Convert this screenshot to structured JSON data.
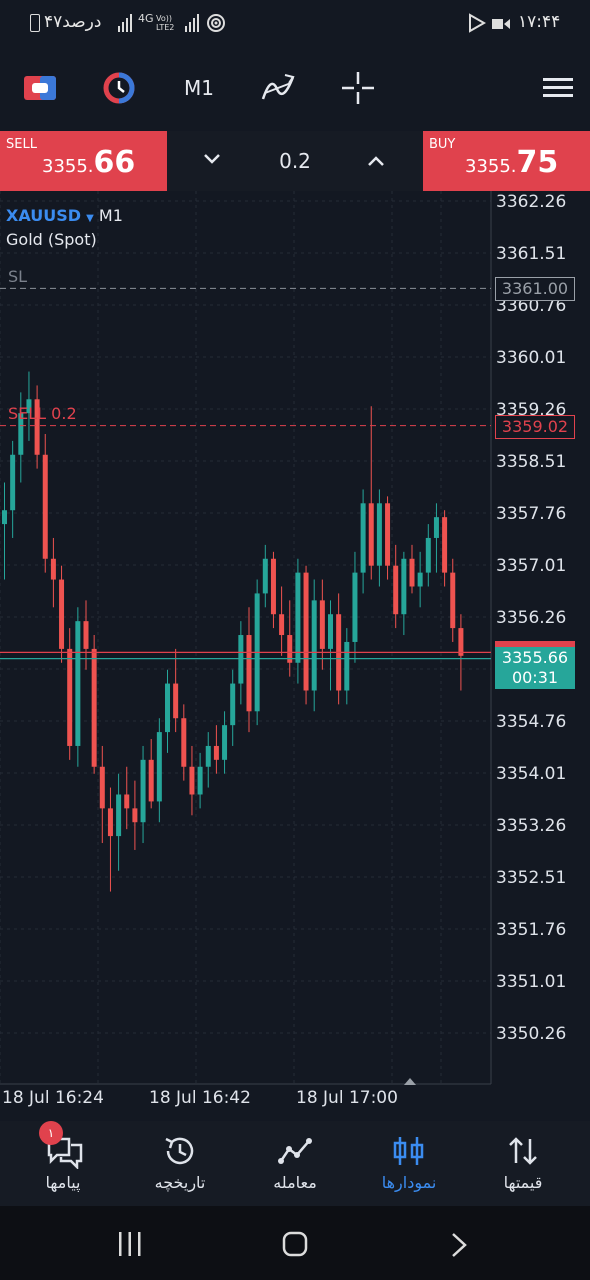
{
  "status_bar": {
    "time": "۱۷:۴۴",
    "battery": "۴۷درصد",
    "network": "4G",
    "network_sub": "Vo)) LTE2"
  },
  "toolbar": {
    "timeframe": "M1",
    "icons": [
      "trade-icon",
      "chart-type-icon",
      "indicators-icon",
      "crosshair-icon",
      "menu-icon"
    ]
  },
  "trade": {
    "sell_label": "SELL",
    "sell_price_main": "3355.",
    "sell_price_big": "66",
    "buy_label": "BUY",
    "buy_price_main": "3355.",
    "buy_price_big": "75",
    "volume": "0.2"
  },
  "chart_info": {
    "symbol": "XAUUSD",
    "timeframe": "M1",
    "description": "Gold (Spot)",
    "sl_label": "SL",
    "sl_price": "3361.00",
    "sell_order_label": "SELL 0.2",
    "sell_order_price": "3359.02",
    "current_price": "3355.66",
    "countdown": "00:31",
    "ask_price_hidden": "3355.75"
  },
  "chart_data": {
    "type": "candlestick",
    "symbol": "XAUUSD",
    "timeframe": "M1",
    "y_ticks": [
      "3362.26",
      "3361.51",
      "3360.76",
      "3360.01",
      "3359.26",
      "3358.51",
      "3357.76",
      "3357.01",
      "3356.26",
      "3355.51",
      "3354.76",
      "3354.01",
      "3353.26",
      "3352.51",
      "3351.76",
      "3351.01",
      "3350.26"
    ],
    "x_ticks": [
      "18 Jul 16:24",
      "18 Jul 16:42",
      "18 Jul 17:00"
    ],
    "ylim": [
      3349.9,
      3362.6
    ],
    "grid": true,
    "candles": [
      {
        "o": 3357.6,
        "h": 3358.2,
        "l": 3356.8,
        "c": 3357.8
      },
      {
        "o": 3357.8,
        "h": 3358.8,
        "l": 3357.4,
        "c": 3358.6
      },
      {
        "o": 3358.6,
        "h": 3359.5,
        "l": 3358.2,
        "c": 3359.2
      },
      {
        "o": 3359.2,
        "h": 3359.8,
        "l": 3358.8,
        "c": 3359.4
      },
      {
        "o": 3359.4,
        "h": 3359.6,
        "l": 3358.4,
        "c": 3358.6
      },
      {
        "o": 3358.6,
        "h": 3358.9,
        "l": 3356.9,
        "c": 3357.1
      },
      {
        "o": 3357.1,
        "h": 3357.4,
        "l": 3356.4,
        "c": 3356.8
      },
      {
        "o": 3356.8,
        "h": 3357.0,
        "l": 3355.6,
        "c": 3355.8
      },
      {
        "o": 3355.8,
        "h": 3356.1,
        "l": 3354.2,
        "c": 3354.4
      },
      {
        "o": 3354.4,
        "h": 3356.4,
        "l": 3354.1,
        "c": 3356.2
      },
      {
        "o": 3356.2,
        "h": 3356.5,
        "l": 3355.5,
        "c": 3355.8
      },
      {
        "o": 3355.8,
        "h": 3356.0,
        "l": 3354.0,
        "c": 3354.1
      },
      {
        "o": 3354.1,
        "h": 3354.4,
        "l": 3353.0,
        "c": 3353.5
      },
      {
        "o": 3353.5,
        "h": 3353.8,
        "l": 3352.3,
        "c": 3353.1
      },
      {
        "o": 3353.1,
        "h": 3354.0,
        "l": 3352.6,
        "c": 3353.7
      },
      {
        "o": 3353.7,
        "h": 3354.1,
        "l": 3353.2,
        "c": 3353.5
      },
      {
        "o": 3353.5,
        "h": 3353.9,
        "l": 3352.9,
        "c": 3353.3
      },
      {
        "o": 3353.3,
        "h": 3354.4,
        "l": 3353.0,
        "c": 3354.2
      },
      {
        "o": 3354.2,
        "h": 3354.5,
        "l": 3353.5,
        "c": 3353.6
      },
      {
        "o": 3353.6,
        "h": 3354.8,
        "l": 3353.3,
        "c": 3354.6
      },
      {
        "o": 3354.6,
        "h": 3355.5,
        "l": 3354.3,
        "c": 3355.3
      },
      {
        "o": 3355.3,
        "h": 3355.8,
        "l": 3354.6,
        "c": 3354.8
      },
      {
        "o": 3354.8,
        "h": 3355.0,
        "l": 3353.9,
        "c": 3354.1
      },
      {
        "o": 3354.1,
        "h": 3354.4,
        "l": 3353.4,
        "c": 3353.7
      },
      {
        "o": 3353.7,
        "h": 3354.3,
        "l": 3353.5,
        "c": 3354.1
      },
      {
        "o": 3354.1,
        "h": 3354.6,
        "l": 3353.8,
        "c": 3354.4
      },
      {
        "o": 3354.4,
        "h": 3354.7,
        "l": 3354.0,
        "c": 3354.2
      },
      {
        "o": 3354.2,
        "h": 3354.9,
        "l": 3354.0,
        "c": 3354.7
      },
      {
        "o": 3354.7,
        "h": 3355.5,
        "l": 3354.4,
        "c": 3355.3
      },
      {
        "o": 3355.3,
        "h": 3356.2,
        "l": 3355.0,
        "c": 3356.0
      },
      {
        "o": 3356.0,
        "h": 3356.4,
        "l": 3354.6,
        "c": 3354.9
      },
      {
        "o": 3354.9,
        "h": 3356.8,
        "l": 3354.7,
        "c": 3356.6
      },
      {
        "o": 3356.6,
        "h": 3357.3,
        "l": 3356.4,
        "c": 3357.1
      },
      {
        "o": 3357.1,
        "h": 3357.2,
        "l": 3356.1,
        "c": 3356.3
      },
      {
        "o": 3356.3,
        "h": 3356.7,
        "l": 3355.7,
        "c": 3356.0
      },
      {
        "o": 3356.0,
        "h": 3356.5,
        "l": 3355.4,
        "c": 3355.6
      },
      {
        "o": 3355.6,
        "h": 3357.1,
        "l": 3355.3,
        "c": 3356.9
      },
      {
        "o": 3356.9,
        "h": 3357.0,
        "l": 3355.0,
        "c": 3355.2
      },
      {
        "o": 3355.2,
        "h": 3356.8,
        "l": 3354.9,
        "c": 3356.5
      },
      {
        "o": 3356.5,
        "h": 3356.8,
        "l": 3355.5,
        "c": 3355.8
      },
      {
        "o": 3355.8,
        "h": 3356.5,
        "l": 3355.2,
        "c": 3356.3
      },
      {
        "o": 3356.3,
        "h": 3356.6,
        "l": 3355.0,
        "c": 3355.2
      },
      {
        "o": 3355.2,
        "h": 3356.1,
        "l": 3355.0,
        "c": 3355.9
      },
      {
        "o": 3355.9,
        "h": 3357.2,
        "l": 3355.6,
        "c": 3356.9
      },
      {
        "o": 3356.9,
        "h": 3358.1,
        "l": 3356.6,
        "c": 3357.9
      },
      {
        "o": 3357.9,
        "h": 3359.3,
        "l": 3356.8,
        "c": 3357.0
      },
      {
        "o": 3357.0,
        "h": 3358.1,
        "l": 3356.7,
        "c": 3357.9
      },
      {
        "o": 3357.9,
        "h": 3358.0,
        "l": 3356.8,
        "c": 3357.0
      },
      {
        "o": 3357.0,
        "h": 3357.3,
        "l": 3356.1,
        "c": 3356.3
      },
      {
        "o": 3356.3,
        "h": 3357.2,
        "l": 3356.0,
        "c": 3357.1
      },
      {
        "o": 3357.1,
        "h": 3357.3,
        "l": 3356.6,
        "c": 3356.7
      },
      {
        "o": 3356.7,
        "h": 3357.2,
        "l": 3356.4,
        "c": 3356.9
      },
      {
        "o": 3356.9,
        "h": 3357.6,
        "l": 3356.7,
        "c": 3357.4
      },
      {
        "o": 3357.4,
        "h": 3357.9,
        "l": 3356.9,
        "c": 3357.7
      },
      {
        "o": 3357.7,
        "h": 3357.8,
        "l": 3356.7,
        "c": 3356.9
      },
      {
        "o": 3356.9,
        "h": 3357.1,
        "l": 3355.9,
        "c": 3356.1
      },
      {
        "o": 3356.1,
        "h": 3356.3,
        "l": 3355.2,
        "c": 3355.7
      }
    ]
  },
  "bottom_nav": {
    "items": [
      {
        "label": "پیامها",
        "icon": "messages-icon",
        "badge": "۱"
      },
      {
        "label": "تاریخچه",
        "icon": "history-icon"
      },
      {
        "label": "معامله",
        "icon": "trade-chart-icon"
      },
      {
        "label": "نمودارها",
        "icon": "candles-icon",
        "active": true
      },
      {
        "label": "قیمتها",
        "icon": "quotes-icon"
      }
    ]
  },
  "colors": {
    "bull": "#26a69a",
    "bear": "#ef5350",
    "sell": "#e0424d",
    "accent": "#3b8cf0",
    "background": "#131822"
  }
}
